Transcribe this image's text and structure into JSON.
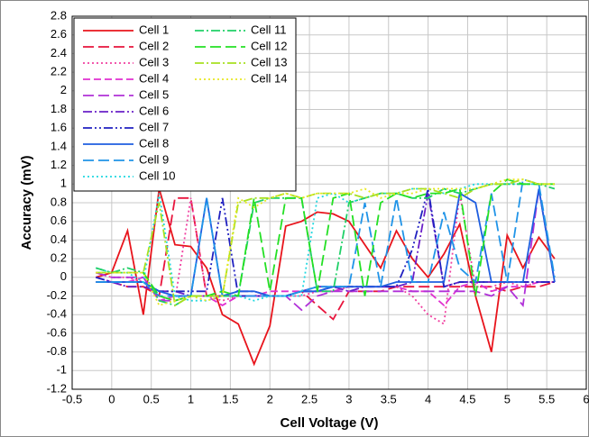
{
  "chart_data": {
    "type": "line",
    "xlabel": "Cell Voltage (V)",
    "ylabel": "Accuracy (mV)",
    "xlim": [
      -0.5,
      6
    ],
    "ylim": [
      -1.2,
      2.8
    ],
    "xticks": [
      -0.5,
      0,
      0.5,
      1,
      1.5,
      2,
      2.5,
      3,
      3.5,
      4,
      4.5,
      5,
      5.5,
      6
    ],
    "yticks": [
      -1.2,
      -1,
      -0.8,
      -0.6,
      -0.4,
      -0.2,
      0,
      0.2,
      0.4,
      0.6,
      0.8,
      1,
      1.2,
      1.4,
      1.6,
      1.8,
      2,
      2.2,
      2.4,
      2.6,
      2.8
    ],
    "grid": true,
    "legend": "upper left",
    "x": [
      -0.2,
      0,
      0.2,
      0.4,
      0.6,
      0.8,
      1,
      1.2,
      1.4,
      1.6,
      1.8,
      2,
      2.2,
      2.4,
      2.6,
      2.8,
      3,
      3.2,
      3.4,
      3.6,
      3.8,
      4,
      4.2,
      4.4,
      4.6,
      4.8,
      5,
      5.2,
      5.4,
      5.6
    ],
    "series": [
      {
        "name": "Cell 1",
        "color": "#e8141c",
        "dash": "none",
        "values": [
          0,
          0.05,
          0.5,
          -0.4,
          0.95,
          0.35,
          0.33,
          0.1,
          -0.4,
          -0.5,
          -0.93,
          -0.52,
          0.55,
          0.6,
          0.7,
          0.68,
          0.6,
          0.35,
          0.1,
          0.5,
          0.2,
          0,
          0.25,
          0.57,
          -0.2,
          -0.8,
          0.45,
          0.1,
          0.43,
          0.2
        ]
      },
      {
        "name": "Cell 2",
        "color": "#e8143c",
        "dash": "12 5",
        "values": [
          -0.05,
          -0.05,
          -0.1,
          -0.1,
          -0.2,
          0.85,
          0.85,
          -0.2,
          -0.2,
          -0.2,
          -0.2,
          -0.2,
          -0.2,
          -0.15,
          -0.3,
          -0.45,
          -0.15,
          -0.15,
          -0.15,
          -0.1,
          -0.1,
          -0.1,
          -0.1,
          -0.1,
          -0.1,
          -0.1,
          -0.15,
          -0.1,
          -0.1,
          -0.05
        ]
      },
      {
        "name": "Cell 3",
        "color": "#f040a0",
        "dash": "2 3",
        "values": [
          0.05,
          0,
          0,
          -0.05,
          -0.2,
          -0.25,
          0.85,
          -0.2,
          -0.25,
          -0.2,
          -0.2,
          -0.2,
          -0.2,
          -0.2,
          -0.15,
          -0.15,
          -0.1,
          -0.1,
          -0.1,
          -0.1,
          -0.2,
          -0.4,
          -0.5,
          0.9,
          -0.1,
          -0.1,
          -0.05,
          -0.1,
          -0.05,
          -0.05
        ]
      },
      {
        "name": "Cell 4",
        "color": "#e030d0",
        "dash": "8 4",
        "values": [
          0,
          -0.05,
          -0.05,
          0,
          -0.25,
          -0.2,
          -0.2,
          -0.2,
          -0.3,
          -0.2,
          -0.2,
          -0.15,
          -0.15,
          -0.15,
          -0.15,
          -0.15,
          -0.1,
          -0.1,
          -0.1,
          -0.1,
          -0.15,
          -0.15,
          -0.3,
          -0.1,
          -0.05,
          -0.15,
          -0.1,
          -0.1,
          -0.05,
          -0.05
        ]
      },
      {
        "name": "Cell 5",
        "color": "#b030d8",
        "dash": "12 5",
        "values": [
          0.05,
          0,
          0,
          0,
          -0.25,
          -0.25,
          -0.2,
          -0.2,
          -0.2,
          -0.2,
          -0.2,
          -0.2,
          -0.2,
          -0.35,
          -0.2,
          -0.15,
          -0.15,
          -0.15,
          -0.15,
          -0.15,
          -0.15,
          -0.15,
          -0.15,
          -0.15,
          -0.15,
          -0.2,
          -0.1,
          -0.3,
          0.95,
          -0.05
        ]
      },
      {
        "name": "Cell 6",
        "color": "#6a20c8",
        "dash": "10 3 2 3",
        "values": [
          -0.05,
          -0.05,
          -0.1,
          -0.1,
          -0.15,
          -0.15,
          -0.2,
          -0.2,
          -0.2,
          -0.15,
          -0.15,
          -0.2,
          -0.2,
          -0.15,
          -0.1,
          -0.1,
          -0.15,
          -0.1,
          -0.1,
          -0.1,
          -0.05,
          0.9,
          -0.1,
          -0.05,
          -0.05,
          -0.05,
          -0.05,
          -0.05,
          -0.05,
          -0.05
        ]
      },
      {
        "name": "Cell 7",
        "color": "#2020c0",
        "dash": "10 3 2 3 2 3",
        "values": [
          0,
          -0.05,
          -0.05,
          -0.05,
          -0.15,
          -0.15,
          -0.15,
          -0.15,
          0.85,
          -0.2,
          -0.2,
          -0.2,
          -0.2,
          -0.15,
          -0.15,
          -0.1,
          -0.1,
          -0.1,
          -0.1,
          -0.1,
          0.3,
          0.95,
          -0.1,
          -0.05,
          -0.05,
          -0.05,
          -0.05,
          -0.05,
          -0.05,
          -0.05
        ]
      },
      {
        "name": "Cell 8",
        "color": "#1e5ee0",
        "dash": "none",
        "values": [
          -0.05,
          -0.05,
          -0.05,
          -0.05,
          -0.15,
          -0.2,
          -0.2,
          0.85,
          -0.2,
          -0.15,
          -0.15,
          -0.2,
          -0.2,
          -0.15,
          -0.15,
          -0.1,
          -0.1,
          -0.1,
          -0.1,
          -0.05,
          -0.05,
          -0.05,
          -0.05,
          0.9,
          0.8,
          -0.05,
          -0.05,
          -0.05,
          0.95,
          -0.05
        ]
      },
      {
        "name": "Cell 9",
        "color": "#2094e8",
        "dash": "12 5",
        "values": [
          -0.05,
          -0.05,
          -0.05,
          -0.05,
          -0.2,
          -0.2,
          -0.2,
          0.85,
          -0.2,
          -0.2,
          -0.2,
          -0.2,
          -0.2,
          -0.15,
          -0.1,
          -0.1,
          -0.1,
          0.8,
          -0.1,
          0.85,
          -0.05,
          -0.05,
          0.7,
          0.1,
          -0.05,
          0.9,
          -0.05,
          1.05,
          1,
          0
        ]
      },
      {
        "name": "Cell 10",
        "color": "#20d8e0",
        "dash": "2 3",
        "values": [
          0.1,
          0.05,
          0.05,
          -0.05,
          0.9,
          -0.2,
          -0.25,
          -0.25,
          -0.2,
          -0.2,
          -0.25,
          -0.2,
          -0.2,
          -0.2,
          0.85,
          0.9,
          0.8,
          0.85,
          0.9,
          0.9,
          0.95,
          0.95,
          0.9,
          0.95,
          1,
          1,
          1,
          1,
          1,
          1
        ]
      },
      {
        "name": "Cell 11",
        "color": "#20d068",
        "dash": "10 3 2 3",
        "values": [
          0.1,
          0.05,
          0.1,
          0.05,
          -0.25,
          -0.3,
          -0.2,
          -0.2,
          -0.2,
          -0.2,
          0.8,
          0.85,
          0.85,
          0.85,
          -0.15,
          -0.15,
          0.8,
          0.85,
          0.9,
          0.9,
          0.85,
          0.85,
          0.95,
          0.9,
          0.95,
          1,
          1,
          1,
          1,
          0.95
        ]
      },
      {
        "name": "Cell 12",
        "color": "#24e024",
        "dash": "12 5",
        "values": [
          0.05,
          0.05,
          0.05,
          0.05,
          -0.2,
          -0.25,
          -0.2,
          -0.2,
          -0.15,
          -0.2,
          0.85,
          -0.15,
          0.85,
          0.85,
          -0.15,
          0.85,
          0.9,
          -0.2,
          0.8,
          0.9,
          0.85,
          0.9,
          0.9,
          0.95,
          -0.2,
          0.9,
          1.05,
          1,
          1,
          1
        ]
      },
      {
        "name": "Cell 13",
        "color": "#a8e020",
        "dash": "10 3 2 3",
        "values": [
          0.05,
          0.05,
          0.05,
          0.05,
          0.8,
          -0.3,
          -0.2,
          -0.2,
          -0.2,
          0.8,
          0.85,
          0.85,
          0.9,
          0.85,
          0.9,
          0.9,
          0.9,
          0.85,
          0.9,
          0.9,
          0.95,
          0.95,
          0.9,
          0.85,
          0.95,
          1,
          1,
          1.05,
          1,
          1
        ]
      },
      {
        "name": "Cell 14",
        "color": "#e8e820",
        "dash": "2 3",
        "values": [
          0.05,
          0.05,
          0.05,
          0.05,
          -0.3,
          -0.25,
          -0.2,
          -0.25,
          -0.2,
          0.85,
          0.75,
          0.85,
          0.9,
          0.85,
          0.9,
          0.9,
          0.9,
          0.95,
          0.85,
          0.9,
          0.9,
          0.95,
          0.95,
          0.95,
          0.95,
          1,
          1.05,
          1.05,
          1,
          1
        ]
      }
    ]
  }
}
